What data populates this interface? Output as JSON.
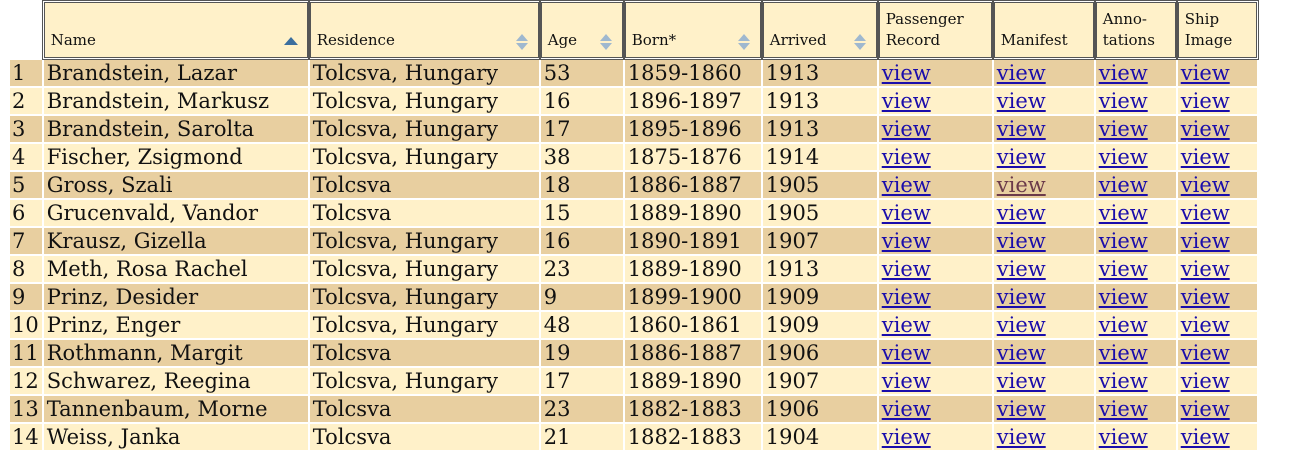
{
  "columns": [
    {
      "key": "idx",
      "label": ""
    },
    {
      "key": "name",
      "label": "Name",
      "sort": "asc"
    },
    {
      "key": "residence",
      "label": "Residence",
      "sort": "both"
    },
    {
      "key": "age",
      "label": "Age",
      "sort": "both"
    },
    {
      "key": "born",
      "label": "Born*",
      "sort": "both"
    },
    {
      "key": "arrived",
      "label": "Arrived",
      "sort": "both"
    },
    {
      "key": "passenger",
      "label": "Passenger Record"
    },
    {
      "key": "manifest",
      "label": "Manifest"
    },
    {
      "key": "annotations",
      "label": "Anno-tations"
    },
    {
      "key": "ship",
      "label": "Ship Image"
    }
  ],
  "header": {
    "name": "Name",
    "residence": "Residence",
    "age": "Age",
    "born": "Born*",
    "arrived": "Arrived",
    "passenger_1": "Passenger",
    "passenger_2": "Record",
    "manifest": "Manifest",
    "annotations_1": "Anno-",
    "annotations_2": "tations",
    "ship_1": "Ship",
    "ship_2": "Image"
  },
  "link_label": "view",
  "colors": {
    "header_bg": "#fff1c9",
    "row_dark": "#e8cfa0",
    "row_light": "#fff1c9",
    "link": "#1a0dab",
    "link_visited": "#6b3a4a",
    "sort_arrow": "#3b6e9e",
    "sort_arrow_inactive": "#9fb8cf"
  },
  "rows": [
    {
      "idx": "1",
      "name": "Brandstein, Lazar",
      "residence": "Tolcsva, Hungary",
      "age": "53",
      "born": "1859-1860",
      "arrived": "1913"
    },
    {
      "idx": "2",
      "name": "Brandstein, Markusz",
      "residence": "Tolcsva, Hungary",
      "age": "16",
      "born": "1896-1897",
      "arrived": "1913"
    },
    {
      "idx": "3",
      "name": "Brandstein, Sarolta",
      "residence": "Tolcsva, Hungary",
      "age": "17",
      "born": "1895-1896",
      "arrived": "1913"
    },
    {
      "idx": "4",
      "name": "Fischer, Zsigmond",
      "residence": "Tolcsva, Hungary",
      "age": "38",
      "born": "1875-1876",
      "arrived": "1914"
    },
    {
      "idx": "5",
      "name": "Gross, Szali",
      "residence": "Tolcsva",
      "age": "18",
      "born": "1886-1887",
      "arrived": "1905",
      "manifest_visited": true
    },
    {
      "idx": "6",
      "name": "Grucenvald, Vandor",
      "residence": "Tolcsva",
      "age": "15",
      "born": "1889-1890",
      "arrived": "1905"
    },
    {
      "idx": "7",
      "name": "Krausz, Gizella",
      "residence": "Tolcsva, Hungary",
      "age": "16",
      "born": "1890-1891",
      "arrived": "1907"
    },
    {
      "idx": "8",
      "name": "Meth, Rosa Rachel",
      "residence": "Tolcsva, Hungary",
      "age": "23",
      "born": "1889-1890",
      "arrived": "1913"
    },
    {
      "idx": "9",
      "name": "Prinz, Desider",
      "residence": "Tolcsva, Hungary",
      "age": "9",
      "born": "1899-1900",
      "arrived": "1909"
    },
    {
      "idx": "10",
      "name": "Prinz, Enger",
      "residence": "Tolcsva, Hungary",
      "age": "48",
      "born": "1860-1861",
      "arrived": "1909"
    },
    {
      "idx": "11",
      "name": "Rothmann, Margit",
      "residence": "Tolcsva",
      "age": "19",
      "born": "1886-1887",
      "arrived": "1906"
    },
    {
      "idx": "12",
      "name": "Schwarez, Reegina",
      "residence": "Tolcsva, Hungary",
      "age": "17",
      "born": "1889-1890",
      "arrived": "1907"
    },
    {
      "idx": "13",
      "name": "Tannenbaum, Morne",
      "residence": "Tolcsva",
      "age": "23",
      "born": "1882-1883",
      "arrived": "1906"
    },
    {
      "idx": "14",
      "name": "Weiss, Janka",
      "residence": "Tolcsva",
      "age": "21",
      "born": "1882-1883",
      "arrived": "1904"
    }
  ]
}
